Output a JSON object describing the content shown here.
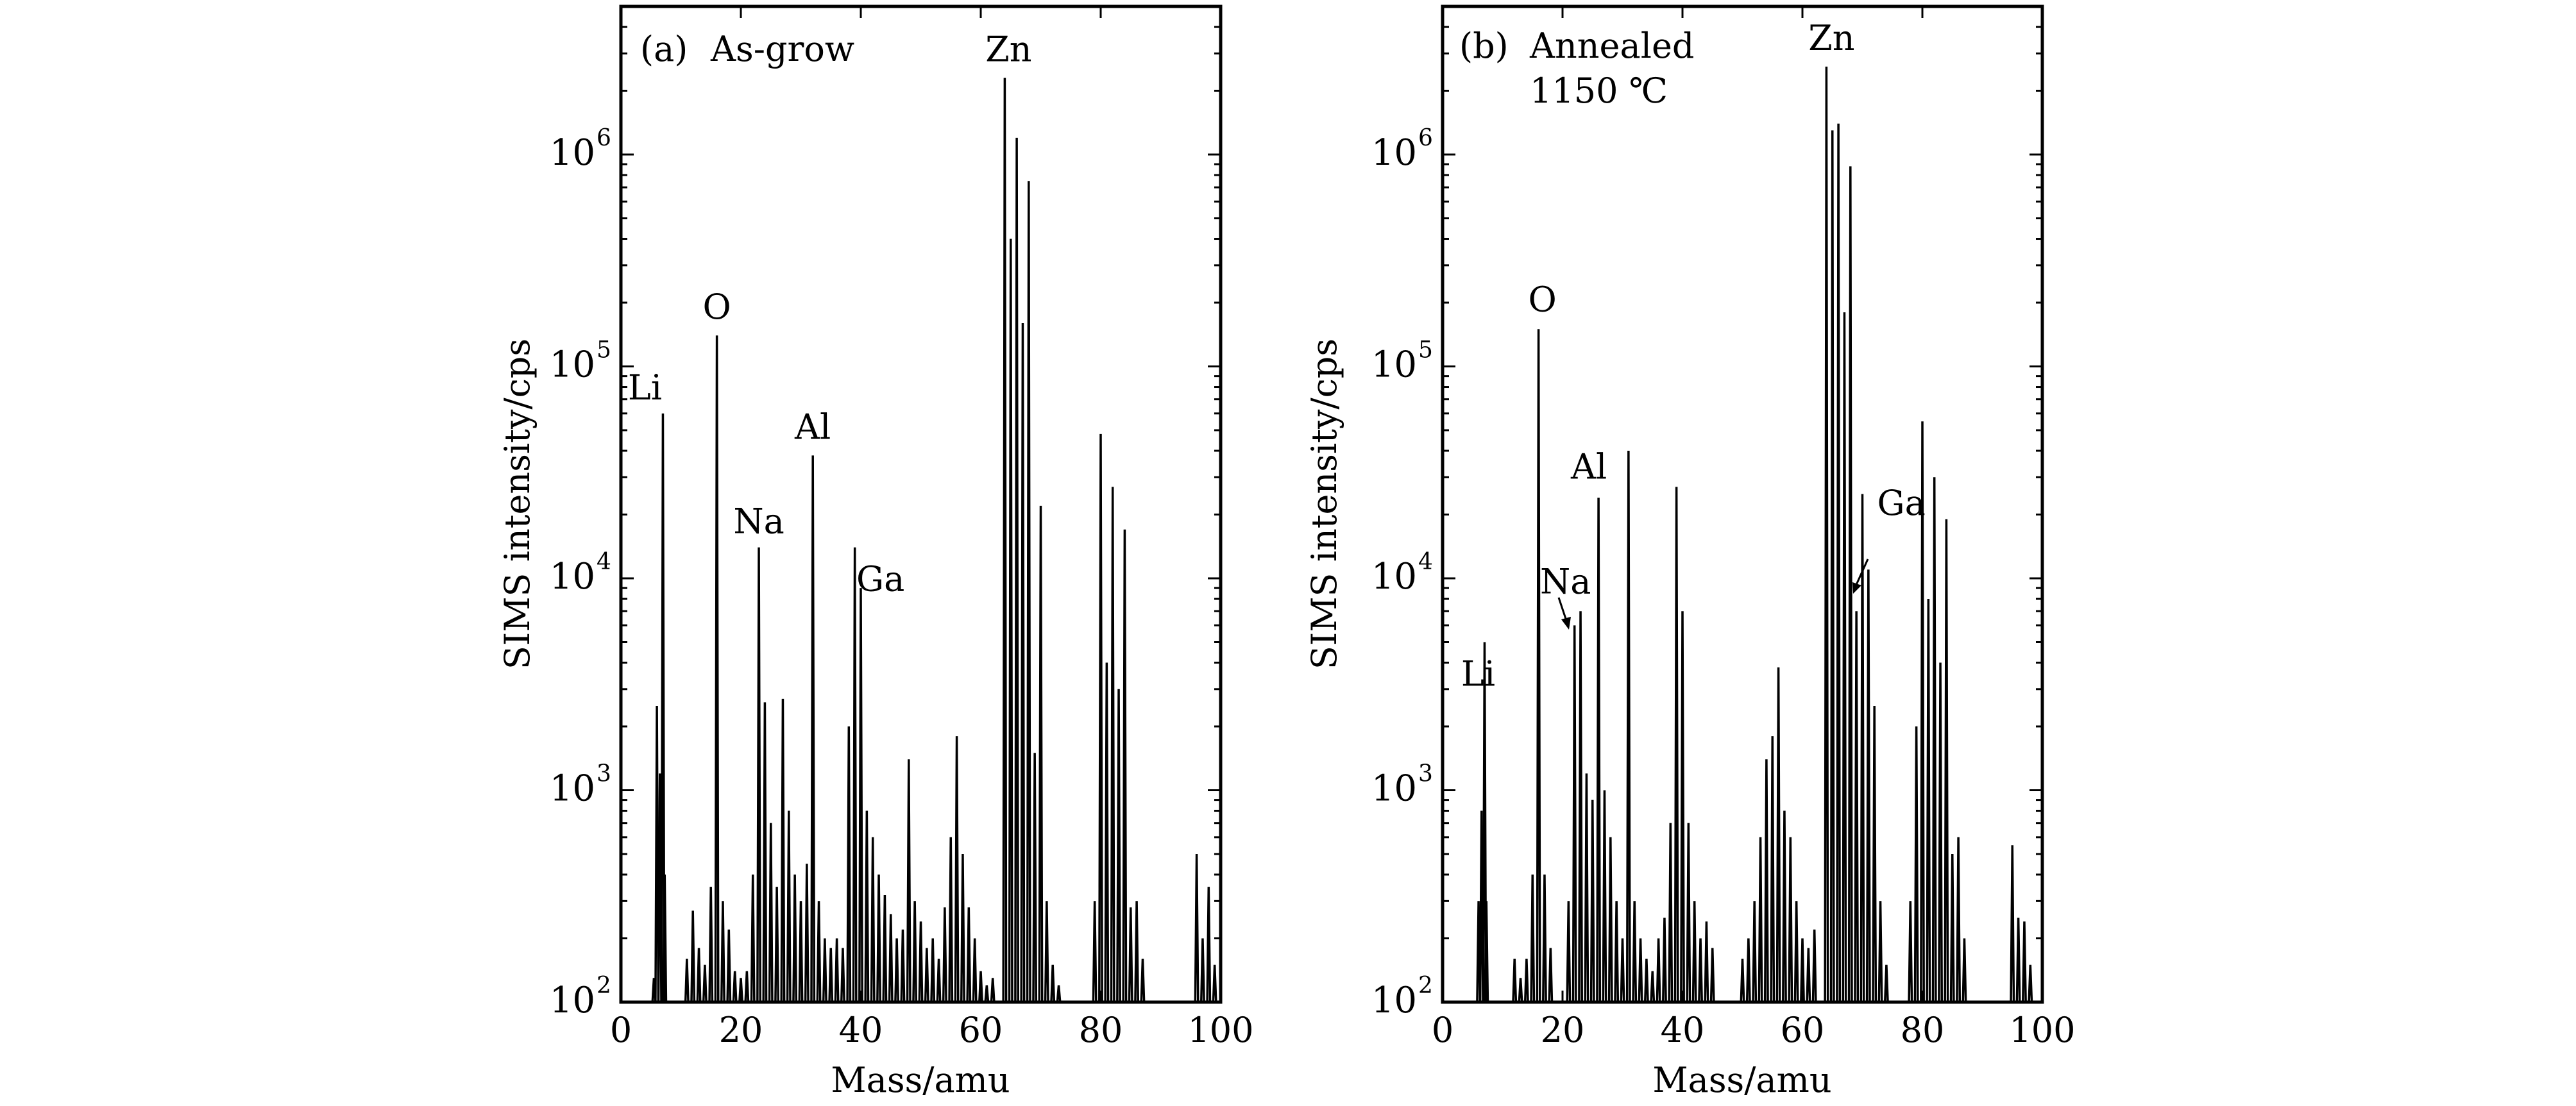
{
  "chart_data": [
    {
      "type": "line",
      "panel_label": "(a)",
      "title": "As-grow",
      "subtitle": "",
      "xlabel": "Mass/amu",
      "ylabel": "SIMS intensity/cps",
      "xlim": [
        0,
        100
      ],
      "ylim": [
        100,
        5000000
      ],
      "yscale": "log",
      "x_ticks": [
        0,
        20,
        40,
        60,
        80,
        100
      ],
      "x_tick_labels": [
        "0",
        "20",
        "40",
        "60",
        "80",
        "100"
      ],
      "y_ticks": [
        100,
        1000,
        10000,
        100000,
        1000000
      ],
      "y_tick_labels": [
        {
          "base": "10",
          "exp": "2"
        },
        {
          "base": "10",
          "exp": "3"
        },
        {
          "base": "10",
          "exp": "4"
        },
        {
          "base": "10",
          "exp": "5"
        },
        {
          "base": "10",
          "exp": "6"
        }
      ],
      "grid": false,
      "series": [
        {
          "name": "As-grow",
          "peaks": [
            [
              5.5,
              130
            ],
            [
              6,
              2500
            ],
            [
              6.5,
              1200
            ],
            [
              7,
              60000
            ],
            [
              7.3,
              400
            ],
            [
              11,
              160
            ],
            [
              12,
              270
            ],
            [
              13,
              180
            ],
            [
              14,
              150
            ],
            [
              15,
              350
            ],
            [
              16,
              140000
            ],
            [
              17,
              300
            ],
            [
              18,
              220
            ],
            [
              19,
              140
            ],
            [
              20,
              130
            ],
            [
              21,
              140
            ],
            [
              22,
              400
            ],
            [
              23,
              14000
            ],
            [
              24,
              2600
            ],
            [
              25,
              700
            ],
            [
              26,
              350
            ],
            [
              27,
              2700
            ],
            [
              28,
              800
            ],
            [
              29,
              400
            ],
            [
              30,
              300
            ],
            [
              31,
              450
            ],
            [
              32,
              38000
            ],
            [
              33,
              300
            ],
            [
              34,
              200
            ],
            [
              35,
              180
            ],
            [
              36,
              200
            ],
            [
              37,
              180
            ],
            [
              38,
              2000
            ],
            [
              39,
              14000
            ],
            [
              40,
              9000
            ],
            [
              41,
              800
            ],
            [
              42,
              600
            ],
            [
              43,
              400
            ],
            [
              44,
              320
            ],
            [
              45,
              260
            ],
            [
              46,
              200
            ],
            [
              47,
              220
            ],
            [
              48,
              1400
            ],
            [
              49,
              300
            ],
            [
              50,
              240
            ],
            [
              51,
              180
            ],
            [
              52,
              200
            ],
            [
              53,
              160
            ],
            [
              54,
              280
            ],
            [
              55,
              600
            ],
            [
              56,
              1800
            ],
            [
              57,
              500
            ],
            [
              58,
              280
            ],
            [
              59,
              200
            ],
            [
              60,
              140
            ],
            [
              61,
              120
            ],
            [
              62,
              130
            ],
            [
              64,
              2300000
            ],
            [
              65,
              400000
            ],
            [
              66,
              1200000
            ],
            [
              67,
              160000
            ],
            [
              68,
              750000
            ],
            [
              69,
              1500
            ],
            [
              70,
              22000
            ],
            [
              71,
              300
            ],
            [
              72,
              150
            ],
            [
              73,
              120
            ],
            [
              79,
              300
            ],
            [
              80,
              48000
            ],
            [
              81,
              4000
            ],
            [
              82,
              27000
            ],
            [
              83,
              3000
            ],
            [
              84,
              17000
            ],
            [
              85,
              280
            ],
            [
              86,
              300
            ],
            [
              87,
              160
            ],
            [
              96,
              500
            ],
            [
              97,
              200
            ],
            [
              98,
              350
            ],
            [
              99,
              150
            ]
          ]
        }
      ],
      "annotations": [
        {
          "text": "Li",
          "x": 7,
          "y": 60000
        },
        {
          "text": "O",
          "x": 16,
          "y": 140000
        },
        {
          "text": "Na",
          "x": 23,
          "y": 14000
        },
        {
          "text": "Al",
          "x": 32,
          "y": 38000
        },
        {
          "text": "Ga",
          "x": 39,
          "y": 14000
        },
        {
          "text": "Zn",
          "x": 64,
          "y": 2300000
        }
      ]
    },
    {
      "type": "line",
      "panel_label": "(b)",
      "title": "Annealed",
      "subtitle": "1150 ℃",
      "xlabel": "Mass/amu",
      "ylabel": "SIMS intensity/cps",
      "xlim": [
        0,
        100
      ],
      "ylim": [
        100,
        5000000
      ],
      "yscale": "log",
      "x_ticks": [
        0,
        20,
        40,
        60,
        80,
        100
      ],
      "x_tick_labels": [
        "0",
        "20",
        "40",
        "60",
        "80",
        "100"
      ],
      "y_ticks": [
        100,
        1000,
        10000,
        100000,
        1000000
      ],
      "y_tick_labels": [
        {
          "base": "10",
          "exp": "2"
        },
        {
          "base": "10",
          "exp": "3"
        },
        {
          "base": "10",
          "exp": "4"
        },
        {
          "base": "10",
          "exp": "5"
        },
        {
          "base": "10",
          "exp": "6"
        }
      ],
      "grid": false,
      "series": [
        {
          "name": "Annealed 1150 ℃",
          "peaks": [
            [
              6,
              300
            ],
            [
              6.5,
              800
            ],
            [
              7,
              5000
            ],
            [
              7.3,
              300
            ],
            [
              12,
              160
            ],
            [
              13,
              130
            ],
            [
              14,
              160
            ],
            [
              15,
              400
            ],
            [
              16,
              150000
            ],
            [
              17,
              400
            ],
            [
              18,
              180
            ],
            [
              21,
              300
            ],
            [
              22,
              6000
            ],
            [
              23,
              7000
            ],
            [
              24,
              1200
            ],
            [
              25,
              900
            ],
            [
              26,
              24000
            ],
            [
              27,
              1000
            ],
            [
              28,
              600
            ],
            [
              29,
              300
            ],
            [
              30,
              200
            ],
            [
              31,
              40000
            ],
            [
              32,
              300
            ],
            [
              33,
              200
            ],
            [
              34,
              160
            ],
            [
              35,
              140
            ],
            [
              36,
              200
            ],
            [
              37,
              250
            ],
            [
              38,
              700
            ],
            [
              39,
              27000
            ],
            [
              40,
              7000
            ],
            [
              41,
              700
            ],
            [
              42,
              300
            ],
            [
              43,
              200
            ],
            [
              44,
              240
            ],
            [
              45,
              180
            ],
            [
              50,
              160
            ],
            [
              51,
              200
            ],
            [
              52,
              300
            ],
            [
              53,
              600
            ],
            [
              54,
              1400
            ],
            [
              55,
              1800
            ],
            [
              56,
              3800
            ],
            [
              57,
              800
            ],
            [
              58,
              600
            ],
            [
              59,
              300
            ],
            [
              60,
              200
            ],
            [
              61,
              180
            ],
            [
              62,
              220
            ],
            [
              64,
              2600000
            ],
            [
              65,
              1300000
            ],
            [
              66,
              1400000
            ],
            [
              67,
              180000
            ],
            [
              68,
              880000
            ],
            [
              69,
              7000
            ],
            [
              70,
              25000
            ],
            [
              71,
              11000
            ],
            [
              72,
              2500
            ],
            [
              73,
              300
            ],
            [
              74,
              150
            ],
            [
              78,
              300
            ],
            [
              79,
              2000
            ],
            [
              80,
              55000
            ],
            [
              81,
              8000
            ],
            [
              82,
              30000
            ],
            [
              83,
              4000
            ],
            [
              84,
              19000
            ],
            [
              85,
              500
            ],
            [
              86,
              600
            ],
            [
              87,
              200
            ],
            [
              95,
              550
            ],
            [
              96,
              250
            ],
            [
              97,
              240
            ],
            [
              98,
              150
            ]
          ]
        }
      ],
      "annotations": [
        {
          "text": "Li",
          "x": 7,
          "y": 5000
        },
        {
          "text": "O",
          "x": 16,
          "y": 150000
        },
        {
          "text": "Na",
          "x": 22,
          "y": 6000
        },
        {
          "text": "Al",
          "x": 26,
          "y": 24000
        },
        {
          "text": "Ga",
          "x": 69,
          "y": 7000
        },
        {
          "text": "Zn",
          "x": 64,
          "y": 2600000
        }
      ]
    }
  ]
}
